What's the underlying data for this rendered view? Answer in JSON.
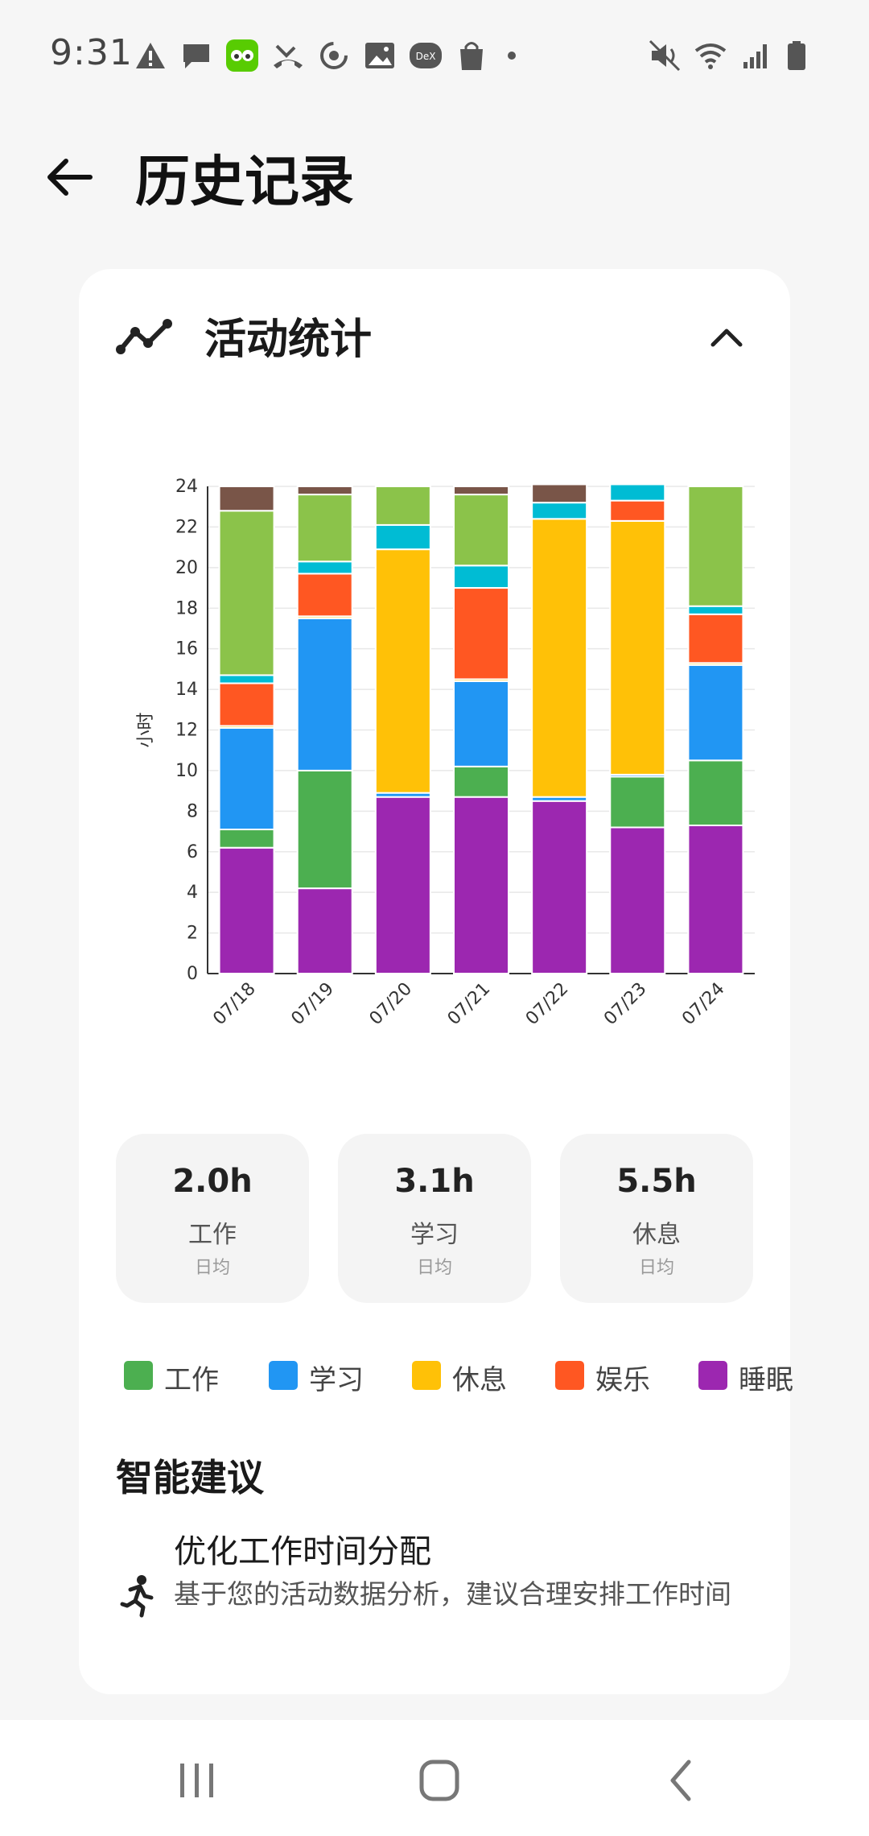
{
  "status_bar": {
    "time": "9:31",
    "left_icons": [
      "warning-icon",
      "message-icon",
      "duolingo-icon",
      "missed-call-icon",
      "sync-icon",
      "image-icon",
      "dex-icon",
      "shopping-bag-icon",
      "dot-icon"
    ],
    "right_icons": [
      "mute-icon",
      "wifi-icon",
      "signal-icon",
      "battery-icon"
    ]
  },
  "app_bar": {
    "back_icon": "arrow-back-icon",
    "title": "历史记录"
  },
  "card": {
    "icon": "trend-line-icon",
    "title": "活动统计",
    "collapse_icon": "chevron-up-icon"
  },
  "chart_data": {
    "type": "bar",
    "stacked": true,
    "ylabel": "小时",
    "xlabel": "",
    "ylim": [
      0,
      24
    ],
    "yticks": [
      0,
      2,
      4,
      6,
      8,
      10,
      12,
      14,
      16,
      18,
      20,
      22,
      24
    ],
    "grid": true,
    "categories": [
      "07/18",
      "07/19",
      "07/20",
      "07/21",
      "07/22",
      "07/23",
      "07/24"
    ],
    "series": [
      {
        "name": "睡眠",
        "color": "#9C27B0",
        "values": [
          6.2,
          4.2,
          8.7,
          8.7,
          8.5,
          7.2,
          7.3
        ]
      },
      {
        "name": "工作",
        "color": "#4CAF50",
        "values": [
          0.9,
          5.8,
          0.0,
          1.5,
          0.0,
          2.5,
          3.2
        ]
      },
      {
        "name": "学习",
        "color": "#2196F3",
        "values": [
          5.0,
          7.5,
          0.2,
          4.2,
          0.2,
          0.1,
          4.7
        ]
      },
      {
        "name": "休息",
        "color": "#FFC107",
        "values": [
          0.1,
          0.1,
          12.0,
          0.1,
          13.7,
          12.5,
          0.1
        ]
      },
      {
        "name": "娱乐",
        "color": "#FF5722",
        "values": [
          2.1,
          2.1,
          0.0,
          4.5,
          0.0,
          1.0,
          2.4
        ]
      },
      {
        "name": "",
        "color": "#00BCD4",
        "values": [
          0.4,
          0.6,
          1.2,
          1.1,
          0.8,
          0.8,
          0.4
        ]
      },
      {
        "name": "",
        "color": "#8BC34A",
        "values": [
          8.1,
          3.3,
          1.9,
          3.5,
          0.0,
          0.0,
          5.9
        ]
      },
      {
        "name": "",
        "color": "#795548",
        "values": [
          1.2,
          0.4,
          0.0,
          0.4,
          0.9,
          0.0,
          0.0
        ]
      }
    ]
  },
  "stats": [
    {
      "value": "2.0h",
      "label": "工作",
      "sub": "日均"
    },
    {
      "value": "3.1h",
      "label": "学习",
      "sub": "日均"
    },
    {
      "value": "5.5h",
      "label": "休息",
      "sub": "日均"
    }
  ],
  "legend": [
    {
      "label": "工作",
      "color": "#4CAF50"
    },
    {
      "label": "学习",
      "color": "#2196F3"
    },
    {
      "label": "休息",
      "color": "#FFC107"
    },
    {
      "label": "娱乐",
      "color": "#FF5722"
    },
    {
      "label": "睡眠",
      "color": "#9C27B0"
    }
  ],
  "suggestions": {
    "title": "智能建议",
    "items": [
      {
        "icon": "running-person-icon",
        "title": "优化工作时间分配",
        "body": "基于您的活动数据分析，建议合理安排工作时间"
      }
    ]
  },
  "nav_bar": {
    "recents_icon": "recents-icon",
    "home_icon": "home-icon",
    "back_icon": "nav-back-icon"
  }
}
